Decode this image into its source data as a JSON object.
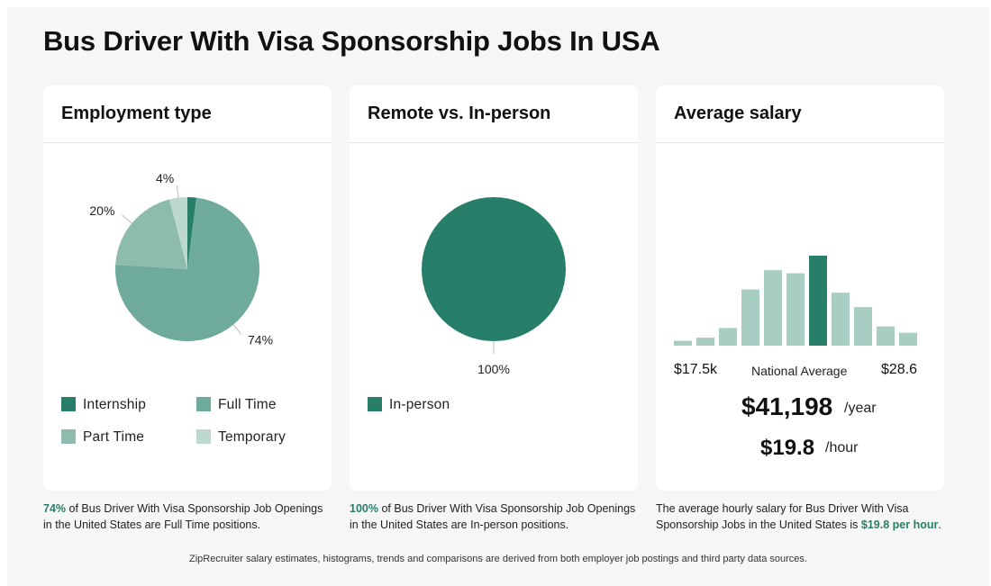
{
  "page": {
    "title": "Bus Driver With Visa Sponsorship Jobs In USA",
    "footer": "ZipRecruiter salary estimates, histograms, trends and comparisons are derived from both employer job postings and third party data sources."
  },
  "colors": {
    "internship": "#277f6a",
    "full_time": "#6eab9b",
    "part_time": "#8dbcae",
    "temporary": "#bcd8d0",
    "in_person": "#277f6a",
    "bar": "#a8cdc2",
    "bar_highlight": "#277f6a",
    "accent_text": "#2a7d68"
  },
  "employment": {
    "heading": "Employment type",
    "legend": [
      "Internship",
      "Full Time",
      "Part Time",
      "Temporary"
    ],
    "caption_pct": "74%",
    "caption_rest": " of Bus Driver With Visa Sponsorship Job Openings in the United States are Full Time positions."
  },
  "remote": {
    "heading": "Remote vs. In-person",
    "legend": [
      "In-person"
    ],
    "caption_pct": "100%",
    "caption_rest": " of Bus Driver With Visa Sponsorship Job Openings in the United States are In-person positions."
  },
  "salary": {
    "heading": "Average salary",
    "min_label": "$17.5k",
    "mid_label": "National Average",
    "max_label": "$28.6",
    "annual": "$41,198",
    "annual_unit": "/year",
    "hourly": "$19.8",
    "hourly_unit": "/hour",
    "caption_pre": "The average hourly salary for Bus Driver With Visa Sponsorship Jobs in the United States is ",
    "caption_value": "$19.8 per hour",
    "caption_post": "."
  },
  "chart_data": [
    {
      "type": "pie",
      "title": "Employment type",
      "slices": [
        {
          "label": "Internship",
          "value": 2,
          "data_label": ""
        },
        {
          "label": "Full Time",
          "value": 74,
          "data_label": "74%"
        },
        {
          "label": "Part Time",
          "value": 20,
          "data_label": "20%"
        },
        {
          "label": "Temporary",
          "value": 4,
          "data_label": "4%"
        }
      ]
    },
    {
      "type": "pie",
      "title": "Remote vs. In-person",
      "slices": [
        {
          "label": "In-person",
          "value": 100,
          "data_label": "100%"
        }
      ]
    },
    {
      "type": "bar",
      "title": "Average salary",
      "values": [
        3,
        5,
        11,
        35,
        47,
        45,
        56,
        33,
        24,
        12,
        8
      ],
      "highlight_index": 6
    }
  ]
}
